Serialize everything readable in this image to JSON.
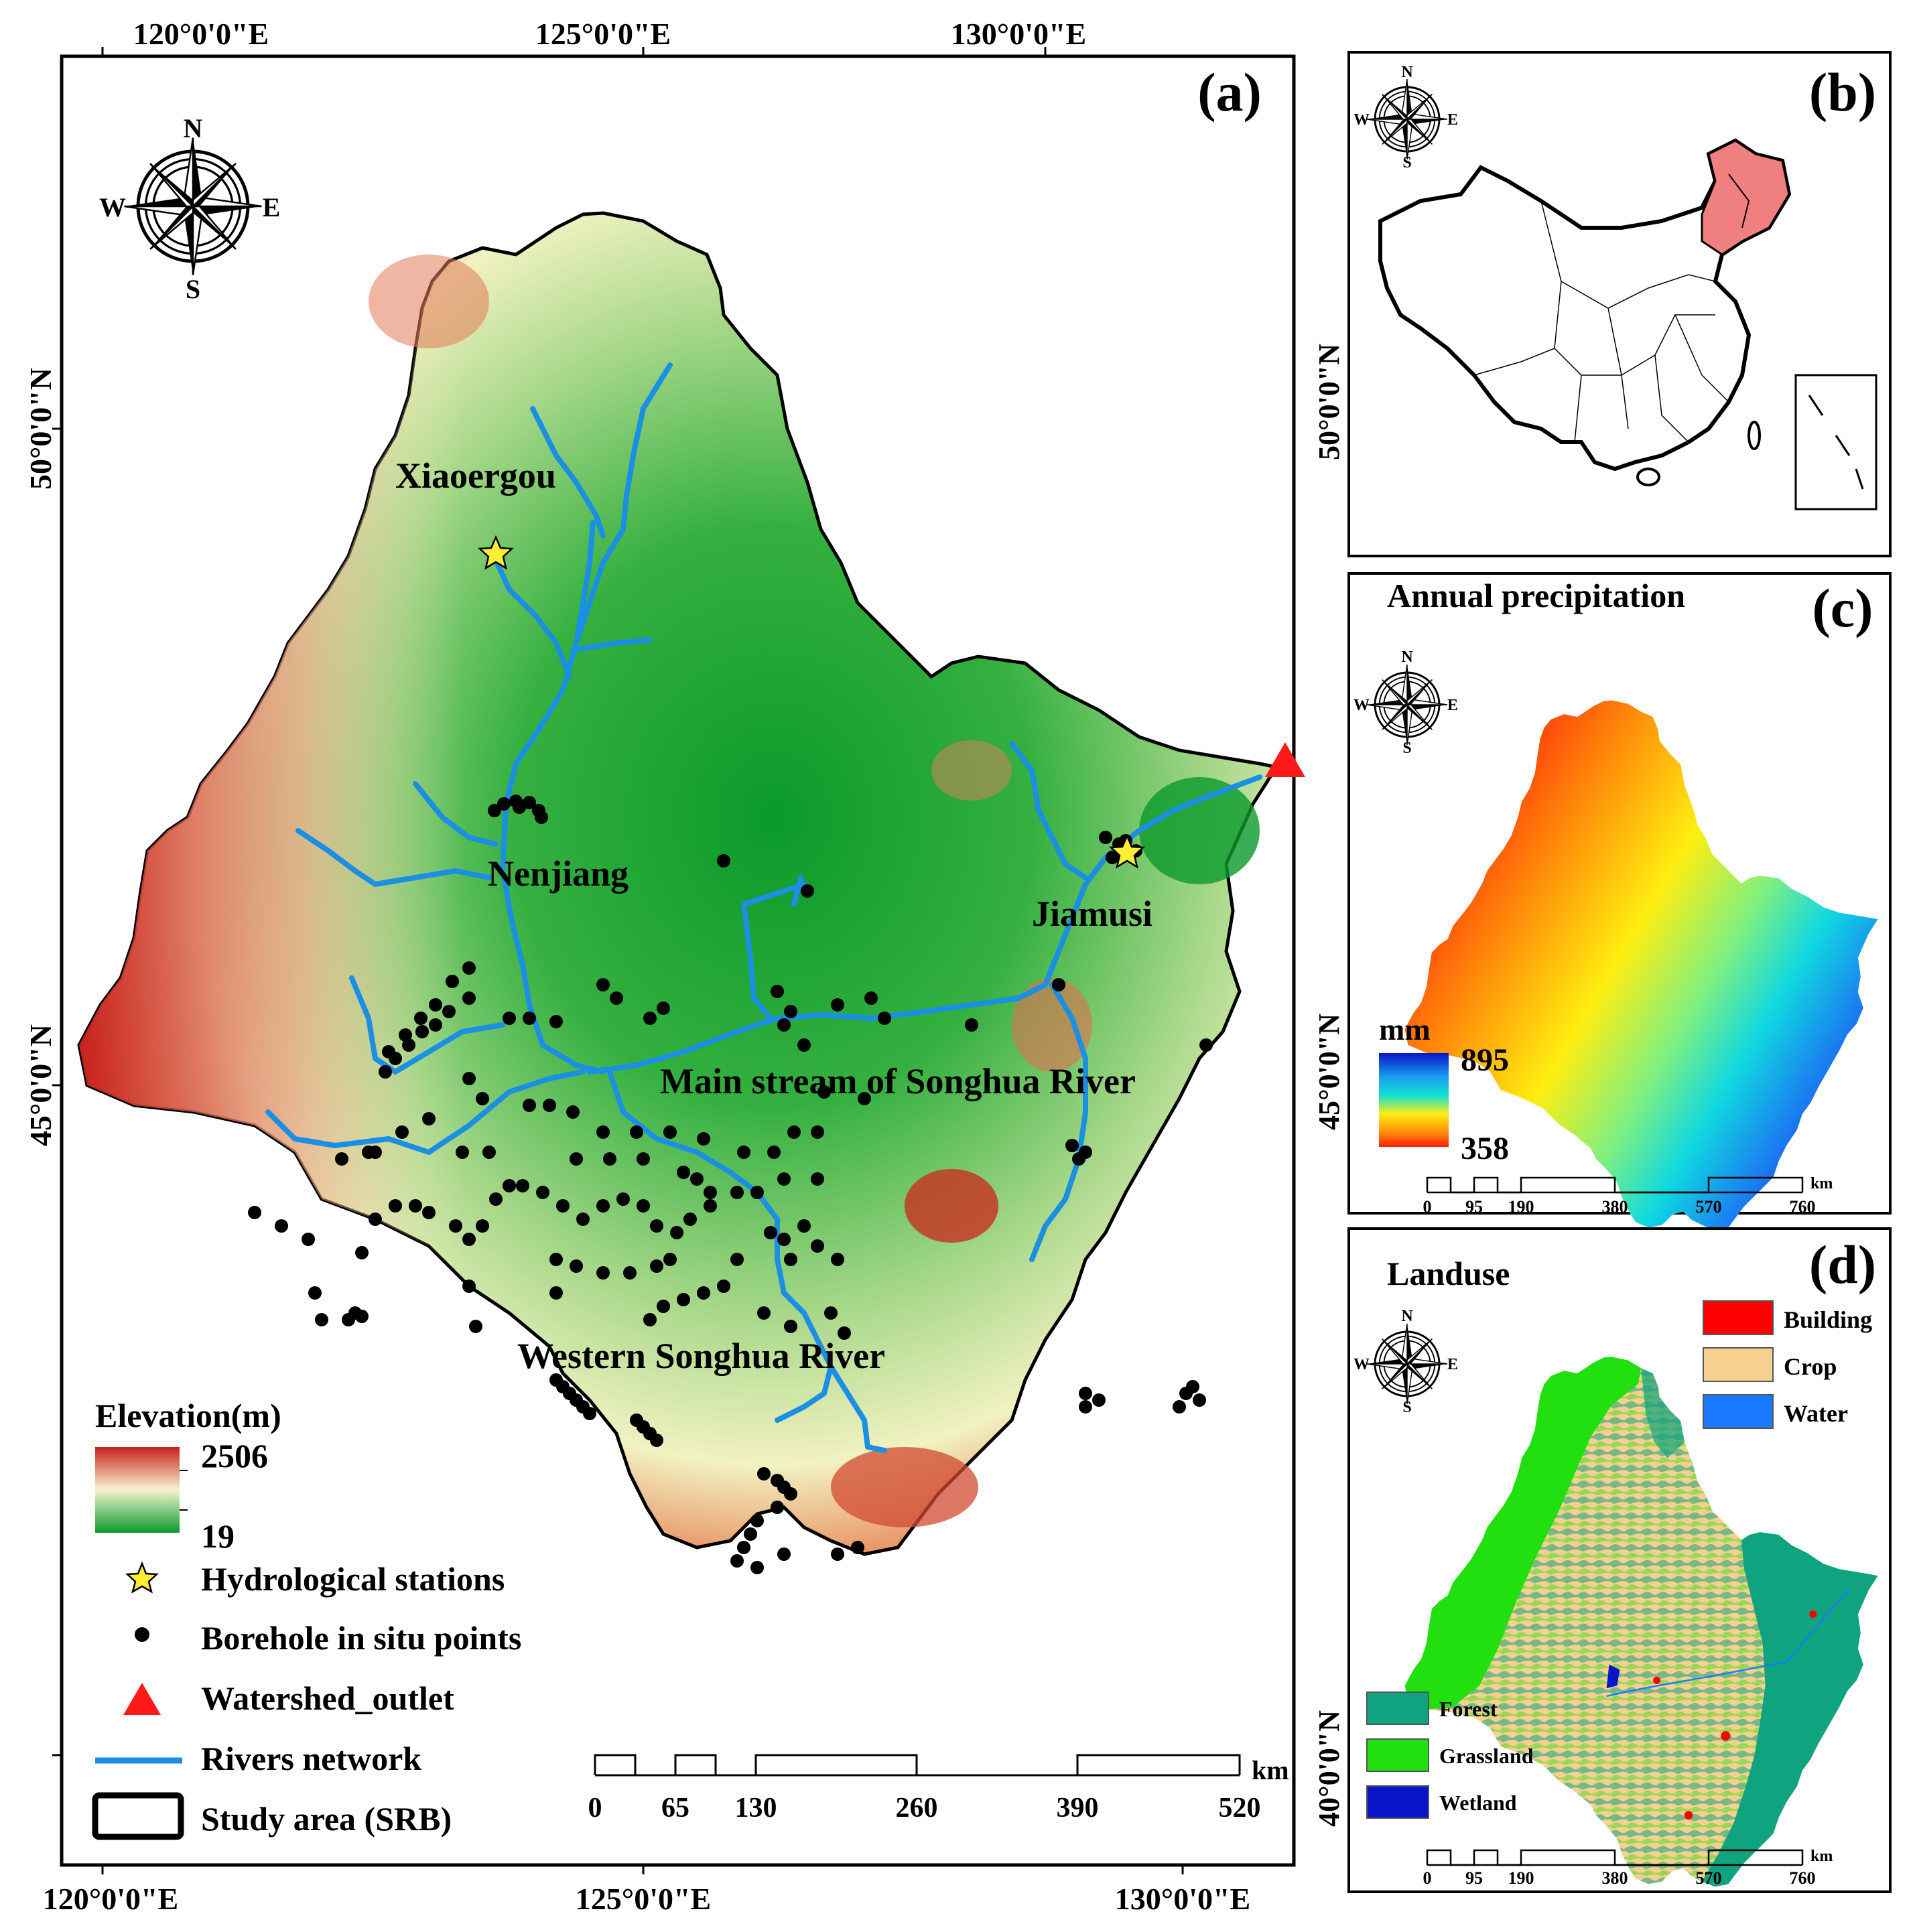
{
  "colors": {
    "elev_high": "#c8201c",
    "elev_mid": "#f2f2c2",
    "elev_low": "#0a9a2a",
    "river": "#1a8fe3",
    "borehole": "#000000",
    "station": "#ffee33",
    "outlet": "#ff1a1a",
    "boundary": "#000000",
    "china_highlight": "#f08080",
    "precip_high": "#0a1ad8",
    "precip_low": "#ff1e0a",
    "building": "#ff0000",
    "crop": "#f5d08e",
    "water": "#1a7aff",
    "forest": "#10a37f",
    "grassland": "#22e010",
    "wetland": "#0a14c8"
  },
  "compass": {
    "north": "N",
    "south": "S",
    "east": "E",
    "west": "W",
    "icon": "compass-rose-icon"
  },
  "panel_a": {
    "tag": "(a)",
    "top_lon_labels": [
      "120°0'0\"E",
      "125°0'0\"E",
      "130°0'0\"E"
    ],
    "bottom_lon_labels": [
      "120°0'0\"E",
      "125°0'0\"E",
      "130°0'0\"E"
    ],
    "lat_labels": [
      "50°0'0\"N",
      "45°0'0\"N"
    ],
    "places": {
      "xiaoergou": "Xiaoergou",
      "nenjiang": "Nenjiang",
      "jiamusi": "Jiamusi",
      "main_stream": "Main stream of Songhua River",
      "western": "Western Songhua River"
    },
    "legend": {
      "elevation_title": "Elevation(m)",
      "elevation_max": "2506",
      "elevation_min": "19",
      "stations": "Hydrological stations",
      "boreholes": "Borehole in situ points",
      "outlet": "Watershed_outlet",
      "rivers": "Rivers network",
      "study_area": "Study area (SRB)"
    },
    "scale": {
      "ticks": [
        "0",
        "65",
        "130",
        "260",
        "390",
        "520"
      ],
      "unit": "km"
    }
  },
  "panel_b": {
    "tag": "(b)",
    "lat_label": "50°0'0\"N"
  },
  "panel_c": {
    "tag": "(c)",
    "title": "Annual precipitation",
    "lat_label": "45°0'0\"N",
    "legend_unit": "mm",
    "legend_max": "895",
    "legend_min": "358",
    "scale": {
      "ticks": [
        "0",
        "95",
        "190",
        "380",
        "570",
        "760"
      ],
      "unit": "km"
    }
  },
  "panel_d": {
    "tag": "(d)",
    "title": "Landuse",
    "lat_label": "40°0'0\"N",
    "legend": {
      "building": "Building",
      "crop": "Crop",
      "water": "Water",
      "forest": "Forest",
      "grassland": "Grassland",
      "wetland": "Wetland"
    },
    "scale": {
      "ticks": [
        "0",
        "95",
        "190",
        "380",
        "570",
        "760"
      ],
      "unit": "km"
    }
  }
}
